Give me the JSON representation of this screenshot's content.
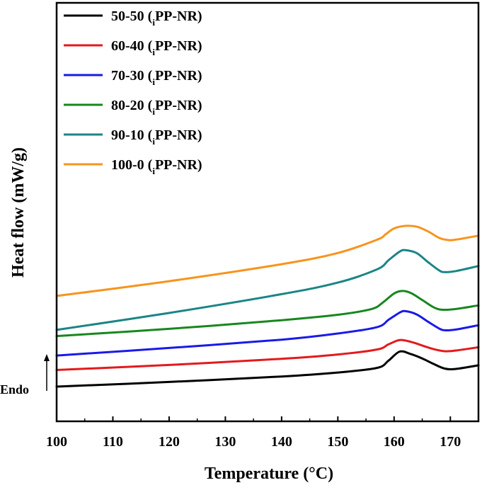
{
  "chart_data": {
    "type": "line",
    "xlabel": "Temperature (°C)",
    "ylabel": "Heat flow (mW/g)",
    "xlim": [
      100,
      175
    ],
    "x_ticks": [
      100,
      110,
      120,
      130,
      140,
      150,
      160,
      170
    ],
    "y_ticks_shown": false,
    "grid": false,
    "legend_position": "top-left",
    "annotation": "Endo",
    "annotation_arrow": "up",
    "series": [
      {
        "name": "50-50 (iPP-NR)",
        "name_main": "50-50 (",
        "name_sub": "i",
        "name_tail": "PP-NR)",
        "color": "#000000",
        "points": [
          [
            100,
            0.0
          ],
          [
            120,
            0.13
          ],
          [
            140,
            0.28
          ],
          [
            150,
            0.39
          ],
          [
            157,
            0.52
          ],
          [
            159,
            0.72
          ],
          [
            161,
            0.97
          ],
          [
            163,
            0.9
          ],
          [
            165,
            0.78
          ],
          [
            167,
            0.63
          ],
          [
            169,
            0.5
          ],
          [
            171,
            0.49
          ],
          [
            175,
            0.59
          ]
        ]
      },
      {
        "name": "60-40 (iPP-NR)",
        "name_main": "60-40 (",
        "name_sub": "i",
        "name_tail": "PP-NR)",
        "color": "#e31a1c",
        "points": [
          [
            100,
            0.46
          ],
          [
            120,
            0.6
          ],
          [
            140,
            0.77
          ],
          [
            150,
            0.89
          ],
          [
            157,
            1.03
          ],
          [
            159,
            1.17
          ],
          [
            161,
            1.29
          ],
          [
            163,
            1.24
          ],
          [
            165,
            1.14
          ],
          [
            167,
            1.04
          ],
          [
            169,
            0.98
          ],
          [
            171,
            1.0
          ],
          [
            175,
            1.09
          ]
        ]
      },
      {
        "name": "70-30 (iPP-NR)",
        "name_main": "70-30 (",
        "name_sub": "i",
        "name_tail": "PP-NR)",
        "color": "#1a1ae8",
        "points": [
          [
            100,
            0.86
          ],
          [
            120,
            1.07
          ],
          [
            140,
            1.3
          ],
          [
            150,
            1.47
          ],
          [
            157,
            1.65
          ],
          [
            159,
            1.85
          ],
          [
            161,
            2.05
          ],
          [
            162,
            2.09
          ],
          [
            164,
            2.0
          ],
          [
            166,
            1.8
          ],
          [
            168,
            1.61
          ],
          [
            169,
            1.56
          ],
          [
            171,
            1.58
          ],
          [
            175,
            1.7
          ]
        ]
      },
      {
        "name": "80-20 (iPP-NR)",
        "name_main": "80-20 (",
        "name_sub": "i",
        "name_tail": "PP-NR)",
        "color": "#18871e",
        "points": [
          [
            100,
            1.4
          ],
          [
            120,
            1.6
          ],
          [
            140,
            1.84
          ],
          [
            150,
            1.99
          ],
          [
            156,
            2.15
          ],
          [
            158,
            2.33
          ],
          [
            160,
            2.58
          ],
          [
            161.5,
            2.65
          ],
          [
            163,
            2.59
          ],
          [
            165,
            2.4
          ],
          [
            167,
            2.2
          ],
          [
            168.5,
            2.13
          ],
          [
            171,
            2.15
          ],
          [
            175,
            2.25
          ]
        ]
      },
      {
        "name": "90-10 (iPP-NR)",
        "name_main": "90-10 (",
        "name_sub": "i",
        "name_tail": "PP-NR)",
        "color": "#1b8585",
        "points": [
          [
            100,
            1.57
          ],
          [
            120,
            2.04
          ],
          [
            140,
            2.56
          ],
          [
            150,
            2.88
          ],
          [
            157,
            3.25
          ],
          [
            159,
            3.5
          ],
          [
            161,
            3.74
          ],
          [
            162,
            3.78
          ],
          [
            164,
            3.7
          ],
          [
            166,
            3.45
          ],
          [
            168,
            3.22
          ],
          [
            169,
            3.17
          ],
          [
            171,
            3.2
          ],
          [
            175,
            3.34
          ]
        ]
      },
      {
        "name": "100-0 (iPP-NR)",
        "name_main": "100-0 (",
        "name_sub": "i",
        "name_tail": "PP-NR)",
        "color": "#f7941d",
        "points": [
          [
            100,
            2.51
          ],
          [
            120,
            2.92
          ],
          [
            140,
            3.39
          ],
          [
            150,
            3.7
          ],
          [
            157,
            4.07
          ],
          [
            158.5,
            4.22
          ],
          [
            160,
            4.38
          ],
          [
            162,
            4.45
          ],
          [
            164,
            4.43
          ],
          [
            166,
            4.3
          ],
          [
            168,
            4.12
          ],
          [
            169.5,
            4.06
          ],
          [
            171,
            4.07
          ],
          [
            175,
            4.18
          ]
        ]
      }
    ]
  }
}
